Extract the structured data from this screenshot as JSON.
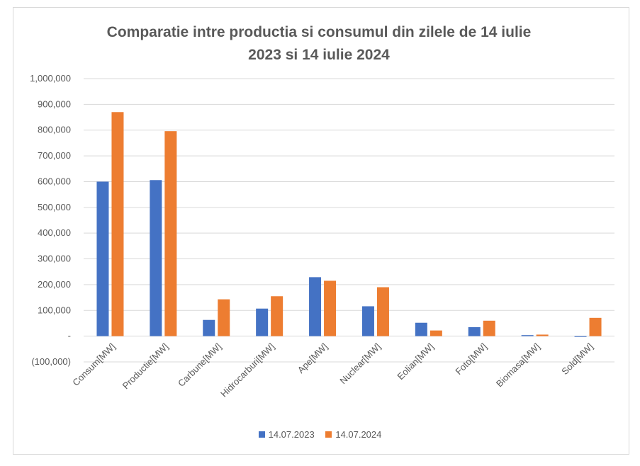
{
  "chart_data": {
    "type": "bar",
    "title_line1": "Comparatie intre productia si consumul din zilele de 14 iulie",
    "title_line2": "2023 si 14 iulie 2024",
    "categories": [
      "Consum[MW]",
      "Productie[MW]",
      "Carbune[MW]",
      "Hidrocarburi[MW]",
      "Ape[MW]",
      "Nuclear[MW]",
      "Eolian[MW]",
      "Foto[MW]",
      "Biomasa[MW]",
      "Sold[MW]"
    ],
    "series": [
      {
        "name": "14.07.2023",
        "color": "#4472c4",
        "values": [
          600000,
          606000,
          63000,
          107000,
          229000,
          116000,
          52000,
          35000,
          4000,
          -3000
        ]
      },
      {
        "name": "14.07.2024",
        "color": "#ed7d31",
        "values": [
          870000,
          796000,
          143000,
          155000,
          215000,
          190000,
          22000,
          60000,
          6000,
          71000
        ]
      }
    ],
    "ylim": [
      -100000,
      1000000
    ],
    "yticks": [
      {
        "value": 1000000,
        "label": "1,000,000"
      },
      {
        "value": 900000,
        "label": "900,000"
      },
      {
        "value": 800000,
        "label": "800,000"
      },
      {
        "value": 700000,
        "label": "700,000"
      },
      {
        "value": 600000,
        "label": "600,000"
      },
      {
        "value": 500000,
        "label": "500,000"
      },
      {
        "value": 400000,
        "label": "400,000"
      },
      {
        "value": 300000,
        "label": "300,000"
      },
      {
        "value": 200000,
        "label": "200,000"
      },
      {
        "value": 100000,
        "label": "100,000"
      },
      {
        "value": 0,
        "label": "-"
      },
      {
        "value": -100000,
        "label": "(100,000)"
      }
    ],
    "grid": true,
    "legend_position": "bottom"
  }
}
